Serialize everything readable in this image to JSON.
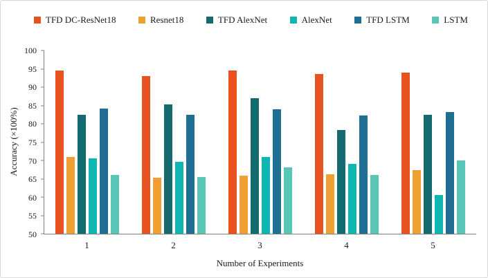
{
  "figure": {
    "background": "#ffffff",
    "border_color": "#d8d8d8",
    "axis_color": "#7f7f7f"
  },
  "chart_data": {
    "type": "bar",
    "title": "",
    "xlabel": "Number of Experiments",
    "ylabel": "Accuracy (×100%)",
    "ylim": [
      50,
      100
    ],
    "ytick_step": 5,
    "grid": false,
    "legend_position": "top",
    "categories": [
      "1",
      "2",
      "3",
      "4",
      "5"
    ],
    "series": [
      {
        "name": "TFD DC-ResNet18",
        "color": "#e8521f",
        "values": [
          94.5,
          93.0,
          94.5,
          93.5,
          94.0
        ]
      },
      {
        "name": "Resnet18",
        "color": "#f0a033",
        "values": [
          71.0,
          65.2,
          65.8,
          66.3,
          67.3
        ]
      },
      {
        "name": "TFD AlexNet",
        "color": "#136b70",
        "values": [
          82.5,
          85.3,
          87.0,
          78.3,
          82.5
        ]
      },
      {
        "name": "AlexNet",
        "color": "#0fb6b2",
        "values": [
          70.5,
          69.7,
          71.0,
          69.0,
          60.5
        ]
      },
      {
        "name": "TFD LSTM",
        "color": "#1f6e93",
        "values": [
          84.2,
          82.5,
          84.0,
          82.3,
          83.2
        ]
      },
      {
        "name": "LSTM",
        "color": "#58c6b4",
        "values": [
          66.0,
          65.5,
          68.2,
          66.0,
          70.0
        ]
      }
    ]
  }
}
